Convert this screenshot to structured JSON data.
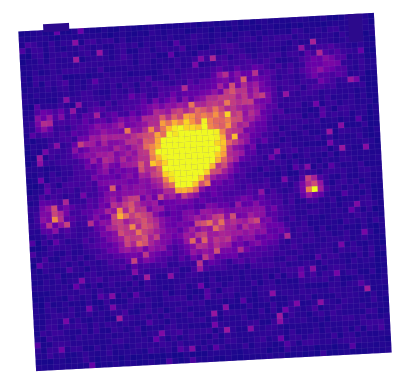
{
  "chart_data": {
    "type": "heatmap",
    "colormap": "plasma",
    "colormap_stops": [
      "#0d0887",
      "#3a049a",
      "#6a00a8",
      "#9c179e",
      "#c03a83",
      "#e16462",
      "#f89540",
      "#fcce25",
      "#f0f921"
    ],
    "background_color": "#2c0a8c",
    "grid_on": true,
    "grid_color": "#ffffff",
    "grid_rows": 60,
    "grid_cols": 60,
    "rotation_deg": -3,
    "title": "",
    "xlabel": "",
    "ylabel": "",
    "legend": "none",
    "hotspots": [
      {
        "x": 0.44,
        "y": 0.4,
        "intensity": 0.95,
        "spread": 0.05
      },
      {
        "x": 0.5,
        "y": 0.38,
        "intensity": 0.85,
        "spread": 0.05
      },
      {
        "x": 0.44,
        "y": 0.46,
        "intensity": 1.0,
        "spread": 0.03
      },
      {
        "x": 0.4,
        "y": 0.34,
        "intensity": 0.7,
        "spread": 0.07
      },
      {
        "x": 0.53,
        "y": 0.32,
        "intensity": 0.6,
        "spread": 0.07
      },
      {
        "x": 0.8,
        "y": 0.5,
        "intensity": 0.9,
        "spread": 0.018
      },
      {
        "x": 0.07,
        "y": 0.55,
        "intensity": 0.55,
        "spread": 0.03
      },
      {
        "x": 0.06,
        "y": 0.27,
        "intensity": 0.5,
        "spread": 0.02
      },
      {
        "x": 0.5,
        "y": 0.62,
        "intensity": 0.6,
        "spread": 0.05
      },
      {
        "x": 0.28,
        "y": 0.55,
        "intensity": 0.45,
        "spread": 0.07
      },
      {
        "x": 0.62,
        "y": 0.22,
        "intensity": 0.4,
        "spread": 0.06
      },
      {
        "x": 0.32,
        "y": 0.62,
        "intensity": 0.4,
        "spread": 0.05
      },
      {
        "x": 0.63,
        "y": 0.6,
        "intensity": 0.35,
        "spread": 0.06
      },
      {
        "x": 0.22,
        "y": 0.35,
        "intensity": 0.4,
        "spread": 0.06
      },
      {
        "x": 0.85,
        "y": 0.15,
        "intensity": 0.3,
        "spread": 0.04
      }
    ]
  }
}
